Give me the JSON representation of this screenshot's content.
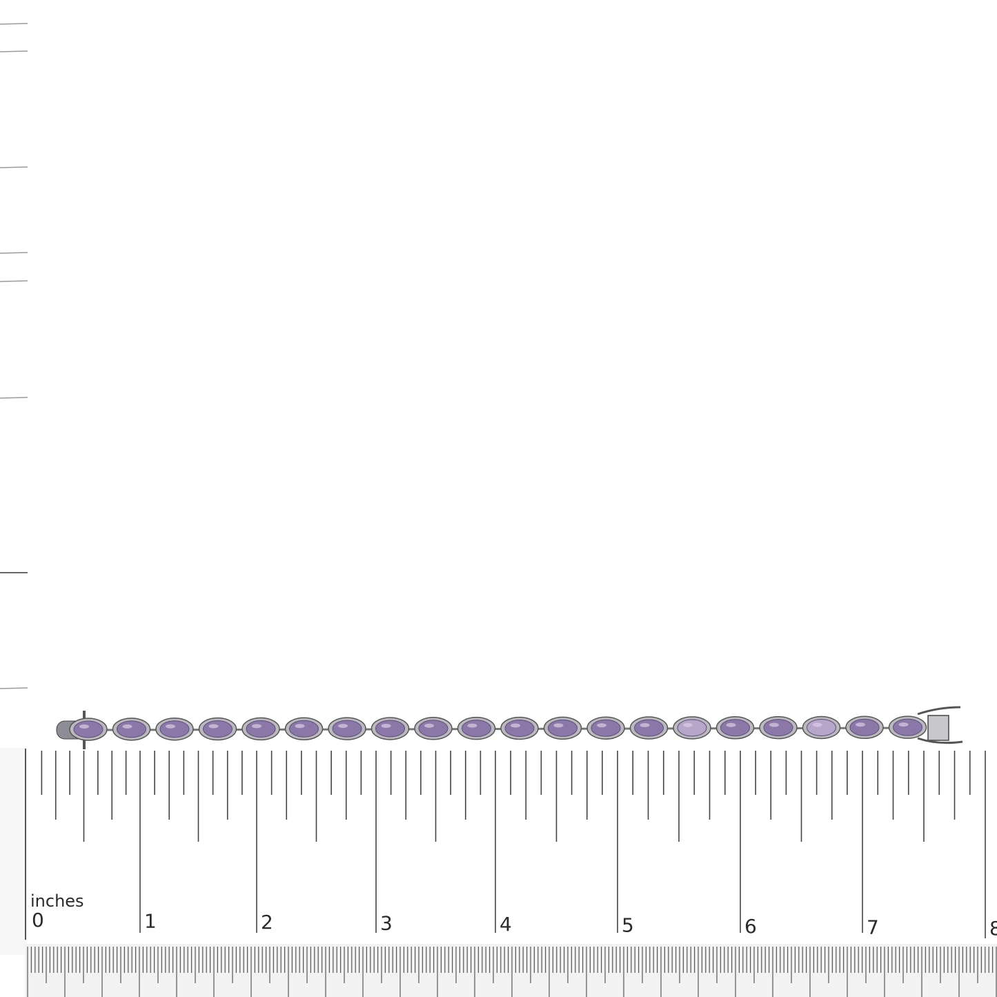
{
  "ruler": {
    "unit": "inches",
    "labels": [
      "0",
      "1",
      "2",
      "3",
      "4",
      "5",
      "6",
      "7",
      "8"
    ]
  }
}
